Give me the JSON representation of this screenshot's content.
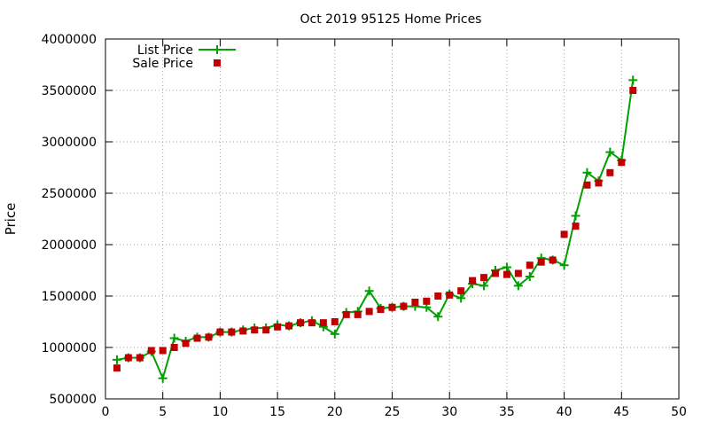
{
  "chart_data": {
    "type": "line",
    "title": "Oct 2019 95125 Home Prices",
    "xlabel": "",
    "ylabel": "Price",
    "xlim": [
      0,
      50
    ],
    "ylim": [
      500000,
      4000000
    ],
    "xticks": [
      0,
      5,
      10,
      15,
      20,
      25,
      30,
      35,
      40,
      45,
      50
    ],
    "yticks": [
      500000,
      1000000,
      1500000,
      2000000,
      2500000,
      3000000,
      3500000,
      4000000
    ],
    "grid": true,
    "legend_position": "top-left",
    "series": [
      {
        "name": "List Price",
        "style": "line-plus",
        "color": "#00a000",
        "x": [
          1,
          2,
          3,
          4,
          5,
          6,
          7,
          8,
          9,
          10,
          11,
          12,
          13,
          14,
          15,
          16,
          17,
          18,
          19,
          20,
          21,
          22,
          23,
          24,
          25,
          26,
          27,
          28,
          29,
          30,
          31,
          32,
          33,
          34,
          35,
          36,
          37,
          38,
          39,
          40,
          41,
          42,
          43,
          44,
          45,
          46
        ],
        "y": [
          880000,
          900000,
          900000,
          960000,
          700000,
          1090000,
          1060000,
          1100000,
          1100000,
          1150000,
          1150000,
          1170000,
          1190000,
          1190000,
          1220000,
          1210000,
          1240000,
          1260000,
          1200000,
          1130000,
          1340000,
          1350000,
          1550000,
          1380000,
          1390000,
          1400000,
          1400000,
          1390000,
          1300000,
          1520000,
          1480000,
          1620000,
          1600000,
          1750000,
          1780000,
          1600000,
          1690000,
          1870000,
          1850000,
          1800000,
          2280000,
          2700000,
          2620000,
          2900000,
          2820000,
          3600000
        ]
      },
      {
        "name": "Sale Price",
        "style": "square-markers",
        "color": "#c00000",
        "x": [
          1,
          2,
          3,
          4,
          5,
          6,
          7,
          8,
          9,
          10,
          11,
          12,
          13,
          14,
          15,
          16,
          17,
          18,
          19,
          20,
          21,
          22,
          23,
          24,
          25,
          26,
          27,
          28,
          29,
          30,
          31,
          32,
          33,
          34,
          35,
          36,
          37,
          38,
          39,
          40,
          41,
          42,
          43,
          44,
          45,
          46
        ],
        "y": [
          800000,
          900000,
          900000,
          970000,
          970000,
          1000000,
          1040000,
          1090000,
          1100000,
          1150000,
          1150000,
          1160000,
          1170000,
          1170000,
          1200000,
          1210000,
          1240000,
          1240000,
          1240000,
          1250000,
          1320000,
          1320000,
          1350000,
          1370000,
          1390000,
          1400000,
          1440000,
          1450000,
          1500000,
          1510000,
          1550000,
          1650000,
          1680000,
          1720000,
          1710000,
          1720000,
          1800000,
          1830000,
          1850000,
          2100000,
          2180000,
          2580000,
          2600000,
          2700000,
          2800000,
          3500000
        ]
      }
    ]
  }
}
